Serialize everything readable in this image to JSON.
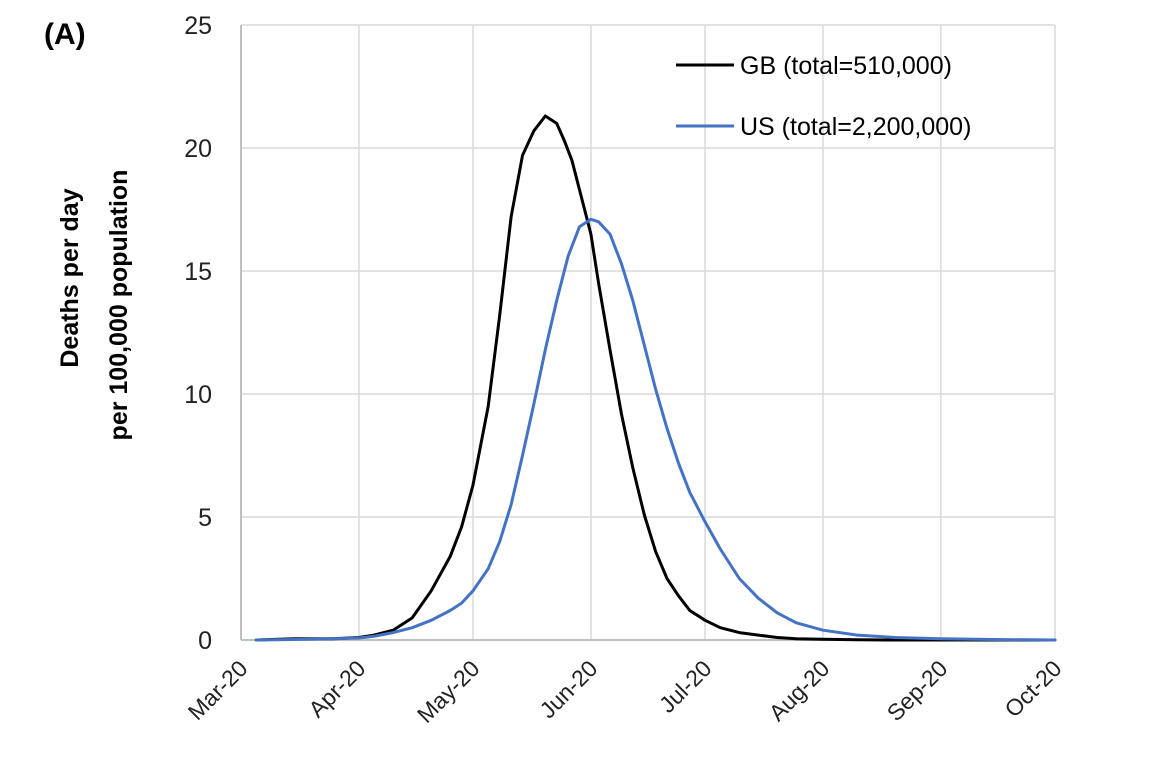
{
  "panel_label": "(A)",
  "chart_data": {
    "type": "line",
    "title": "",
    "xlabel": "",
    "ylabel_lines": [
      "Deaths per day",
      "per 100,000 population"
    ],
    "x_tick_labels": [
      "Mar-20",
      "Apr-20",
      "May-20",
      "Jun-20",
      "Jul-20",
      "Aug-20",
      "Sep-20",
      "Oct-20"
    ],
    "x_tick_dates": [
      "2020-03-01",
      "2020-04-01",
      "2020-05-01",
      "2020-06-01",
      "2020-07-01",
      "2020-08-01",
      "2020-09-01",
      "2020-10-01"
    ],
    "xlim": [
      "2020-03-01",
      "2020-10-01"
    ],
    "ylim": [
      0,
      25
    ],
    "y_ticks": [
      0,
      5,
      10,
      15,
      20,
      25
    ],
    "grid": true,
    "legend_position": "top-right",
    "series": [
      {
        "name": "GB (total=510,000)",
        "color": "#000000",
        "x": [
          "2020-03-05",
          "2020-03-15",
          "2020-03-25",
          "2020-04-01",
          "2020-04-05",
          "2020-04-10",
          "2020-04-15",
          "2020-04-20",
          "2020-04-25",
          "2020-04-28",
          "2020-05-01",
          "2020-05-05",
          "2020-05-08",
          "2020-05-11",
          "2020-05-14",
          "2020-05-17",
          "2020-05-20",
          "2020-05-23",
          "2020-05-25",
          "2020-05-27",
          "2020-05-29",
          "2020-06-01",
          "2020-06-03",
          "2020-06-06",
          "2020-06-09",
          "2020-06-12",
          "2020-06-15",
          "2020-06-18",
          "2020-06-21",
          "2020-06-24",
          "2020-06-27",
          "2020-07-01",
          "2020-07-05",
          "2020-07-10",
          "2020-07-15",
          "2020-07-20",
          "2020-07-25",
          "2020-08-01",
          "2020-08-10",
          "2020-08-20",
          "2020-09-01",
          "2020-10-01"
        ],
        "values": [
          0.0,
          0.05,
          0.05,
          0.1,
          0.2,
          0.4,
          0.9,
          2.0,
          3.4,
          4.6,
          6.3,
          9.5,
          13.2,
          17.2,
          19.7,
          20.7,
          21.3,
          21.0,
          20.3,
          19.5,
          18.3,
          16.5,
          14.5,
          11.8,
          9.2,
          7.0,
          5.1,
          3.6,
          2.5,
          1.8,
          1.2,
          0.8,
          0.5,
          0.3,
          0.2,
          0.1,
          0.05,
          0.03,
          0.01,
          0.0,
          0.0,
          0.0
        ]
      },
      {
        "name": "US (total=2,200,000)",
        "color": "#4472c4",
        "x": [
          "2020-03-05",
          "2020-03-15",
          "2020-03-25",
          "2020-04-01",
          "2020-04-05",
          "2020-04-10",
          "2020-04-15",
          "2020-04-20",
          "2020-04-25",
          "2020-04-28",
          "2020-05-01",
          "2020-05-05",
          "2020-05-08",
          "2020-05-11",
          "2020-05-14",
          "2020-05-17",
          "2020-05-20",
          "2020-05-23",
          "2020-05-26",
          "2020-05-29",
          "2020-06-01",
          "2020-06-03",
          "2020-06-06",
          "2020-06-09",
          "2020-06-12",
          "2020-06-15",
          "2020-06-18",
          "2020-06-21",
          "2020-06-24",
          "2020-06-27",
          "2020-07-01",
          "2020-07-05",
          "2020-07-10",
          "2020-07-15",
          "2020-07-20",
          "2020-07-25",
          "2020-08-01",
          "2020-08-10",
          "2020-08-20",
          "2020-09-01",
          "2020-09-15",
          "2020-10-01"
        ],
        "values": [
          0.0,
          0.02,
          0.05,
          0.08,
          0.15,
          0.3,
          0.5,
          0.8,
          1.2,
          1.5,
          2.0,
          2.9,
          4.0,
          5.5,
          7.5,
          9.6,
          11.8,
          13.8,
          15.6,
          16.8,
          17.1,
          17.0,
          16.5,
          15.3,
          13.8,
          12.0,
          10.2,
          8.6,
          7.2,
          6.0,
          4.8,
          3.7,
          2.5,
          1.7,
          1.1,
          0.7,
          0.4,
          0.2,
          0.1,
          0.05,
          0.02,
          0.0
        ]
      }
    ]
  }
}
